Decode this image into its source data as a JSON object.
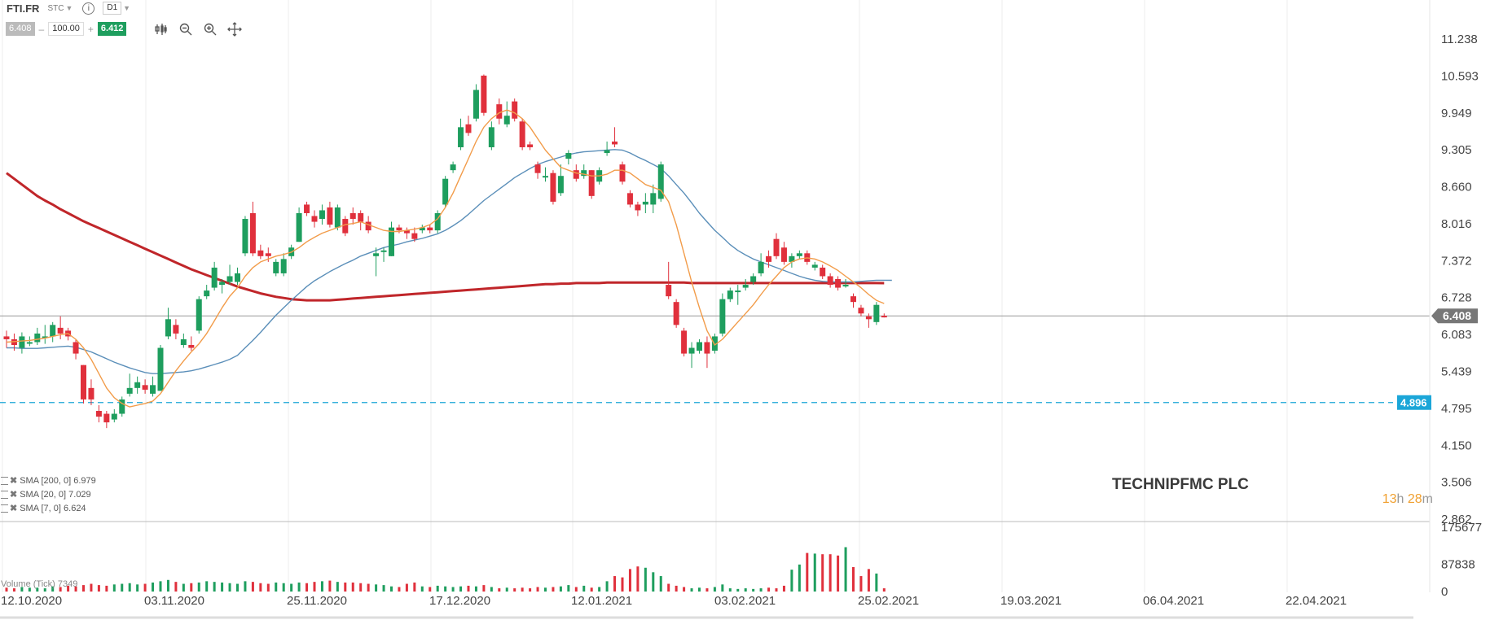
{
  "toolbar": {
    "symbol": "FTI.FR",
    "market": "STC",
    "timeframe": "D1",
    "bid": "6.408",
    "quantity": "100.00",
    "ask": "6.412",
    "minus": "–",
    "plus": "+"
  },
  "tools": [
    "candles-icon",
    "zoom-out-icon",
    "zoom-in-icon",
    "crosshair-icon"
  ],
  "company": "TECHNIPFMC PLC",
  "countdown": {
    "hours": "13",
    "h": "h",
    "minutes": "28",
    "m": "m"
  },
  "legend": [
    {
      "label": "SMA [200, 0] 6.979",
      "color": "#c0262a"
    },
    {
      "label": "SMA [20, 0] 7.029",
      "color": "#5b8fb9"
    },
    {
      "label": "SMA [7, 0] 6.624",
      "color": "#f29c4a"
    }
  ],
  "volume_label": "Volume (Tick) 7349",
  "colors": {
    "up": "#1e9e5e",
    "down": "#e0303c",
    "sma200": "#c0262a",
    "sma20": "#5b8fb9",
    "sma7": "#f29c4a",
    "alert": "#1ba6d8"
  },
  "chart_data": {
    "type": "candlestick",
    "ylim": [
      2.862,
      11.238
    ],
    "y_ticks": [
      "11.238",
      "10.593",
      "9.949",
      "9.305",
      "8.660",
      "8.016",
      "7.372",
      "6.728",
      "6.083",
      "5.439",
      "4.795",
      "4.150",
      "3.506",
      "2.862"
    ],
    "x_ticks": [
      "12.10.2020",
      "03.11.2020",
      "25.11.2020",
      "17.12.2020",
      "12.01.2021",
      "03.02.2021",
      "25.02.2021",
      "19.03.2021",
      "06.04.2021",
      "22.04.2021"
    ],
    "current_price": "6.408",
    "alert_price": "4.896",
    "volume_ticks": [
      "175677",
      "87838",
      "0"
    ],
    "candles": [
      [
        6.05,
        6.0,
        6.15,
        5.85
      ],
      [
        6.0,
        5.9,
        6.1,
        5.8
      ],
      [
        5.85,
        6.05,
        6.12,
        5.75
      ],
      [
        5.95,
        5.95,
        6.05,
        5.88
      ],
      [
        5.95,
        6.1,
        6.2,
        5.9
      ],
      [
        6.05,
        6.05,
        6.25,
        5.92
      ],
      [
        6.05,
        6.25,
        6.3,
        5.95
      ],
      [
        6.2,
        6.1,
        6.4,
        6.0
      ],
      [
        6.15,
        6.05,
        6.2,
        5.98
      ],
      [
        5.95,
        5.75,
        6.0,
        5.65
      ],
      [
        5.55,
        4.95,
        5.55,
        4.88
      ],
      [
        5.15,
        4.95,
        5.3,
        4.85
      ],
      [
        4.75,
        4.65,
        4.85,
        4.55
      ],
      [
        4.7,
        4.55,
        4.75,
        4.45
      ],
      [
        4.6,
        4.7,
        4.78,
        4.55
      ],
      [
        4.7,
        4.95,
        5.0,
        4.65
      ],
      [
        5.05,
        5.15,
        5.4,
        5.0
      ],
      [
        5.15,
        5.25,
        5.35,
        5.05
      ],
      [
        5.2,
        5.12,
        5.3,
        5.05
      ],
      [
        5.05,
        5.2,
        5.35,
        5.0
      ],
      [
        5.1,
        5.85,
        5.9,
        5.1
      ],
      [
        6.05,
        6.35,
        6.55,
        6.0
      ],
      [
        6.25,
        6.1,
        6.35,
        6.0
      ],
      [
        5.9,
        6.0,
        6.1,
        5.85
      ],
      [
        5.9,
        5.85,
        6.05,
        5.8
      ],
      [
        6.15,
        6.7,
        6.75,
        6.1
      ],
      [
        6.75,
        6.85,
        6.95,
        6.7
      ],
      [
        6.9,
        7.25,
        7.35,
        6.85
      ],
      [
        6.95,
        7.0,
        7.05,
        6.8
      ],
      [
        7.0,
        7.1,
        7.3,
        6.95
      ],
      [
        7.0,
        7.15,
        7.25,
        6.95
      ],
      [
        7.5,
        8.1,
        8.15,
        7.45
      ],
      [
        8.2,
        7.5,
        8.4,
        7.45
      ],
      [
        7.55,
        7.45,
        7.65,
        7.4
      ],
      [
        7.5,
        7.45,
        7.6,
        7.35
      ],
      [
        7.15,
        7.35,
        7.4,
        7.1
      ],
      [
        7.15,
        7.4,
        7.5,
        7.1
      ],
      [
        7.45,
        7.6,
        7.65,
        7.4
      ],
      [
        7.7,
        8.2,
        8.3,
        7.7
      ],
      [
        8.35,
        8.2,
        8.4,
        8.15
      ],
      [
        8.15,
        8.05,
        8.25,
        7.95
      ],
      [
        8.1,
        8.25,
        8.35,
        8.0
      ],
      [
        8.3,
        8.0,
        8.4,
        7.95
      ],
      [
        7.95,
        8.3,
        8.35,
        7.9
      ],
      [
        8.1,
        7.85,
        8.15,
        7.8
      ],
      [
        8.2,
        8.1,
        8.3,
        8.0
      ],
      [
        8.2,
        8.05,
        8.25,
        7.9
      ],
      [
        8.05,
        7.9,
        8.15,
        7.85
      ],
      [
        7.45,
        7.5,
        7.6,
        7.1
      ],
      [
        7.55,
        7.55,
        7.6,
        7.35
      ],
      [
        7.45,
        7.95,
        8.05,
        7.45
      ],
      [
        7.95,
        7.9,
        8.0,
        7.85
      ],
      [
        7.9,
        7.85,
        7.95,
        7.75
      ],
      [
        7.85,
        7.75,
        7.95,
        7.7
      ],
      [
        7.9,
        7.95,
        8.0,
        7.85
      ],
      [
        7.95,
        7.9,
        8.0,
        7.85
      ],
      [
        7.9,
        8.2,
        8.25,
        7.85
      ],
      [
        8.35,
        8.8,
        8.85,
        8.3
      ],
      [
        8.95,
        9.05,
        9.1,
        8.9
      ],
      [
        9.35,
        9.7,
        9.85,
        9.3
      ],
      [
        9.75,
        9.6,
        9.9,
        9.55
      ],
      [
        9.85,
        10.35,
        10.45,
        9.8
      ],
      [
        10.6,
        9.95,
        10.62,
        9.9
      ],
      [
        9.35,
        9.7,
        9.8,
        9.3
      ],
      [
        10.1,
        9.85,
        10.2,
        9.75
      ],
      [
        9.75,
        9.9,
        10.15,
        9.7
      ],
      [
        10.15,
        9.85,
        10.2,
        9.8
      ],
      [
        9.8,
        9.35,
        9.85,
        9.3
      ],
      [
        9.4,
        9.35,
        9.45,
        9.3
      ],
      [
        9.05,
        8.9,
        9.1,
        8.8
      ],
      [
        8.85,
        8.85,
        9.0,
        8.75
      ],
      [
        8.9,
        8.4,
        8.95,
        8.35
      ],
      [
        8.55,
        8.85,
        9.05,
        8.5
      ],
      [
        9.15,
        9.25,
        9.3,
        9.05
      ],
      [
        8.95,
        8.8,
        9.05,
        8.75
      ],
      [
        8.85,
        8.95,
        9.05,
        8.8
      ],
      [
        8.95,
        8.5,
        8.95,
        8.45
      ],
      [
        8.75,
        8.95,
        9.0,
        8.7
      ],
      [
        9.25,
        9.3,
        9.45,
        9.2
      ],
      [
        9.45,
        9.4,
        9.7,
        9.35
      ],
      [
        9.05,
        8.75,
        9.1,
        8.7
      ],
      [
        8.55,
        8.35,
        8.6,
        8.3
      ],
      [
        8.35,
        8.25,
        8.4,
        8.15
      ],
      [
        8.35,
        8.4,
        8.55,
        8.2
      ],
      [
        8.35,
        8.55,
        8.7,
        8.2
      ],
      [
        8.45,
        9.05,
        9.1,
        8.4
      ],
      [
        6.95,
        6.75,
        7.35,
        6.7
      ],
      [
        6.65,
        6.25,
        6.7,
        6.2
      ],
      [
        6.15,
        5.75,
        6.2,
        5.7
      ],
      [
        5.75,
        5.85,
        5.95,
        5.5
      ],
      [
        5.8,
        5.95,
        6.0,
        5.75
      ],
      [
        5.95,
        5.75,
        6.05,
        5.5
      ],
      [
        5.8,
        6.05,
        6.1,
        5.75
      ],
      [
        6.1,
        6.7,
        6.8,
        6.05
      ],
      [
        6.7,
        6.85,
        6.9,
        6.65
      ],
      [
        6.85,
        6.85,
        6.95,
        6.6
      ],
      [
        6.9,
        6.95,
        7.05,
        6.85
      ],
      [
        7.0,
        7.1,
        7.15,
        6.95
      ],
      [
        7.15,
        7.35,
        7.5,
        7.1
      ],
      [
        7.45,
        7.35,
        7.55,
        7.25
      ],
      [
        7.75,
        7.45,
        7.85,
        7.4
      ],
      [
        7.6,
        7.35,
        7.7,
        7.3
      ],
      [
        7.35,
        7.45,
        7.5,
        7.25
      ],
      [
        7.45,
        7.5,
        7.55,
        7.4
      ],
      [
        7.5,
        7.35,
        7.55,
        7.3
      ],
      [
        7.25,
        7.3,
        7.35,
        7.2
      ],
      [
        7.25,
        7.1,
        7.3,
        7.05
      ],
      [
        7.1,
        6.95,
        7.15,
        6.9
      ],
      [
        7.05,
        6.9,
        7.1,
        6.85
      ],
      [
        6.95,
        6.95,
        7.05,
        6.9
      ],
      [
        6.75,
        6.65,
        6.8,
        6.55
      ],
      [
        6.55,
        6.45,
        6.6,
        6.4
      ],
      [
        6.4,
        6.35,
        6.45,
        6.2
      ],
      [
        6.3,
        6.6,
        6.65,
        6.25
      ],
      [
        6.41,
        6.408,
        6.45,
        6.38
      ]
    ],
    "sma200": [
      8.9,
      8.8,
      8.7,
      8.6,
      8.5,
      8.42,
      8.35,
      8.27,
      8.2,
      8.13,
      8.06,
      8.0,
      7.94,
      7.88,
      7.82,
      7.76,
      7.7,
      7.64,
      7.58,
      7.52,
      7.46,
      7.4,
      7.34,
      7.28,
      7.22,
      7.17,
      7.12,
      7.07,
      7.02,
      6.97,
      6.92,
      6.88,
      6.84,
      6.8,
      6.77,
      6.74,
      6.72,
      6.7,
      6.69,
      6.68,
      6.68,
      6.68,
      6.68,
      6.69,
      6.7,
      6.71,
      6.72,
      6.73,
      6.74,
      6.75,
      6.76,
      6.77,
      6.78,
      6.79,
      6.8,
      6.81,
      6.82,
      6.83,
      6.84,
      6.85,
      6.86,
      6.87,
      6.88,
      6.89,
      6.9,
      6.91,
      6.92,
      6.93,
      6.94,
      6.95,
      6.96,
      6.96,
      6.97,
      6.97,
      6.98,
      6.98,
      6.98,
      6.98,
      6.99,
      6.99,
      6.99,
      6.99,
      6.99,
      6.99,
      6.99,
      6.99,
      6.99,
      6.99,
      6.99,
      6.98,
      6.98,
      6.98,
      6.98,
      6.98,
      6.98,
      6.98,
      6.98,
      6.98,
      6.98,
      6.98,
      6.98,
      6.98,
      6.98,
      6.98,
      6.98,
      6.98,
      6.98,
      6.98,
      6.98,
      6.98,
      6.98,
      6.98,
      6.98,
      6.98,
      6.979
    ],
    "sma20": [
      5.85,
      5.85,
      5.84,
      5.84,
      5.84,
      5.85,
      5.86,
      5.87,
      5.88,
      5.86,
      5.82,
      5.78,
      5.72,
      5.66,
      5.6,
      5.55,
      5.5,
      5.46,
      5.42,
      5.4,
      5.4,
      5.41,
      5.42,
      5.43,
      5.45,
      5.48,
      5.52,
      5.56,
      5.6,
      5.65,
      5.72,
      5.85,
      5.98,
      6.12,
      6.27,
      6.42,
      6.55,
      6.68,
      6.8,
      6.92,
      7.02,
      7.1,
      7.18,
      7.25,
      7.32,
      7.38,
      7.45,
      7.5,
      7.55,
      7.6,
      7.63,
      7.66,
      7.7,
      7.73,
      7.76,
      7.8,
      7.84,
      7.9,
      7.98,
      8.07,
      8.18,
      8.3,
      8.42,
      8.52,
      8.62,
      8.72,
      8.82,
      8.9,
      8.98,
      9.05,
      9.1,
      9.14,
      9.18,
      9.22,
      9.25,
      9.27,
      9.28,
      9.29,
      9.3,
      9.31,
      9.3,
      9.25,
      9.18,
      9.12,
      9.05,
      8.98,
      8.85,
      8.7,
      8.55,
      8.38,
      8.2,
      8.05,
      7.9,
      7.78,
      7.65,
      7.55,
      7.47,
      7.4,
      7.35,
      7.3,
      7.25,
      7.2,
      7.15,
      7.1,
      7.06,
      7.03,
      7.01,
      7.0,
      7.0,
      7.0,
      7.0,
      7.01,
      7.02,
      7.03,
      7.03,
      7.029
    ],
    "sma7": [
      5.95,
      5.96,
      5.97,
      5.98,
      6.0,
      6.02,
      6.05,
      6.08,
      6.1,
      6.0,
      5.85,
      5.65,
      5.4,
      5.15,
      4.98,
      4.88,
      4.82,
      4.85,
      4.88,
      4.92,
      5.05,
      5.25,
      5.45,
      5.62,
      5.78,
      5.92,
      6.1,
      6.32,
      6.55,
      6.75,
      6.9,
      7.1,
      7.25,
      7.35,
      7.4,
      7.45,
      7.48,
      7.52,
      7.6,
      7.7,
      7.78,
      7.85,
      7.9,
      7.95,
      8.0,
      8.02,
      8.05,
      8.0,
      7.95,
      7.9,
      7.88,
      7.88,
      7.9,
      7.92,
      7.95,
      8.0,
      8.1,
      8.3,
      8.55,
      8.85,
      9.15,
      9.45,
      9.7,
      9.85,
      9.95,
      10.0,
      9.95,
      9.85,
      9.7,
      9.5,
      9.3,
      9.15,
      9.0,
      8.95,
      8.9,
      8.88,
      8.85,
      8.85,
      8.88,
      8.95,
      8.95,
      8.9,
      8.8,
      8.7,
      8.65,
      8.6,
      8.4,
      8.0,
      7.5,
      7.0,
      6.55,
      6.15,
      5.9,
      6.0,
      6.15,
      6.3,
      6.45,
      6.6,
      6.78,
      6.95,
      7.1,
      7.25,
      7.35,
      7.4,
      7.42,
      7.4,
      7.35,
      7.28,
      7.2,
      7.1,
      7.0,
      6.9,
      6.78,
      6.68,
      6.624
    ],
    "volume": [
      0.06,
      0.05,
      0.07,
      0.06,
      0.06,
      0.05,
      0.08,
      0.07,
      0.09,
      0.08,
      0.1,
      0.12,
      0.1,
      0.09,
      0.11,
      0.12,
      0.13,
      0.11,
      0.12,
      0.14,
      0.16,
      0.18,
      0.15,
      0.12,
      0.13,
      0.14,
      0.16,
      0.15,
      0.14,
      0.13,
      0.12,
      0.16,
      0.15,
      0.13,
      0.12,
      0.14,
      0.13,
      0.12,
      0.14,
      0.13,
      0.15,
      0.16,
      0.17,
      0.15,
      0.14,
      0.14,
      0.13,
      0.12,
      0.11,
      0.1,
      0.08,
      0.07,
      0.12,
      0.14,
      0.08,
      0.07,
      0.09,
      0.08,
      0.07,
      0.08,
      0.09,
      0.08,
      0.1,
      0.07,
      0.05,
      0.06,
      0.05,
      0.06,
      0.05,
      0.07,
      0.06,
      0.07,
      0.08,
      0.1,
      0.07,
      0.09,
      0.06,
      0.07,
      0.16,
      0.24,
      0.22,
      0.35,
      0.39,
      0.37,
      0.3,
      0.24,
      0.12,
      0.09,
      0.07,
      0.05,
      0.06,
      0.05,
      0.07,
      0.11,
      0.05,
      0.04,
      0.05,
      0.04,
      0.05,
      0.06,
      0.05,
      0.09,
      0.34,
      0.42,
      0.6,
      0.59,
      0.58,
      0.58,
      0.56,
      0.69,
      0.38,
      0.24,
      0.35,
      0.28,
      0.05
    ],
    "volume_ymax": 175677
  }
}
